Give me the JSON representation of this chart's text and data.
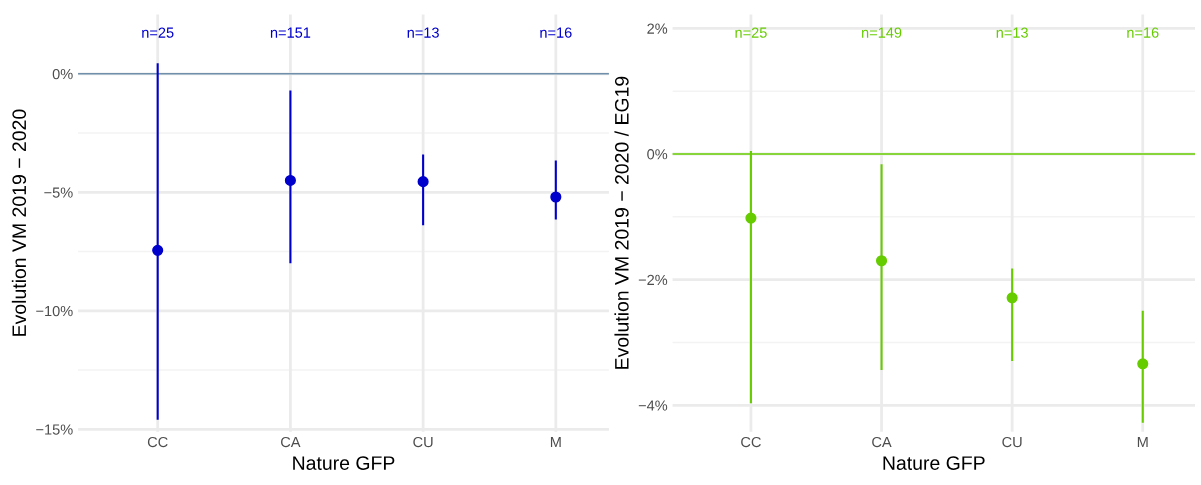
{
  "chart_data": [
    {
      "type": "scatter",
      "xlabel": "Nature GFP",
      "ylabel": "Evolution VM 2019 − 2020",
      "categories": [
        "CC",
        "CA",
        "CU",
        "M"
      ],
      "series": [
        {
          "color": "#0000cc",
          "values": [
            -7.45,
            -4.5,
            -4.55,
            -5.2
          ],
          "errors": [
            [
              -14.55,
              0.4
            ],
            [
              -7.95,
              -0.75
            ],
            [
              -6.35,
              -3.45
            ],
            [
              -6.1,
              -3.7
            ]
          ]
        }
      ],
      "ylim": [
        -15.1,
        2.5
      ],
      "yticks": [
        {
          "value": -15,
          "label": "−15%"
        },
        {
          "value": -10,
          "label": "−10%"
        },
        {
          "value": -5,
          "label": "−5%"
        },
        {
          "value": 0,
          "label": "0%"
        }
      ],
      "ref_lines": [
        {
          "axis": "y",
          "value": 0,
          "color": "#6f8fab"
        }
      ],
      "annotations": [
        "n=25",
        "n=151",
        "n=13",
        "n=16"
      ],
      "grid": true,
      "marker": "circle",
      "legend": false
    },
    {
      "type": "scatter",
      "xlabel": "Nature GFP",
      "ylabel": "Evolution VM 2019 − 2020 / EG19",
      "categories": [
        "CC",
        "CA",
        "CU",
        "M"
      ],
      "series": [
        {
          "color": "#66cc00",
          "values": [
            -1.02,
            -1.7,
            -2.29,
            -3.34
          ],
          "errors": [
            [
              -3.95,
              0.03
            ],
            [
              -3.42,
              -0.18
            ],
            [
              -3.28,
              -1.84
            ],
            [
              -4.26,
              -2.51
            ]
          ]
        }
      ],
      "ylim": [
        -4.42,
        2.22
      ],
      "yticks": [
        {
          "value": -4,
          "label": "−4%"
        },
        {
          "value": -2,
          "label": "−2%"
        },
        {
          "value": 0,
          "label": "0%"
        },
        {
          "value": 2,
          "label": "2%"
        }
      ],
      "ref_lines": [
        {
          "axis": "y",
          "value": 0,
          "color": "#66cc00"
        }
      ],
      "annotations": [
        "n=25",
        "n=149",
        "n=13",
        "n=16"
      ],
      "grid": true,
      "marker": "circle",
      "legend": false
    }
  ]
}
